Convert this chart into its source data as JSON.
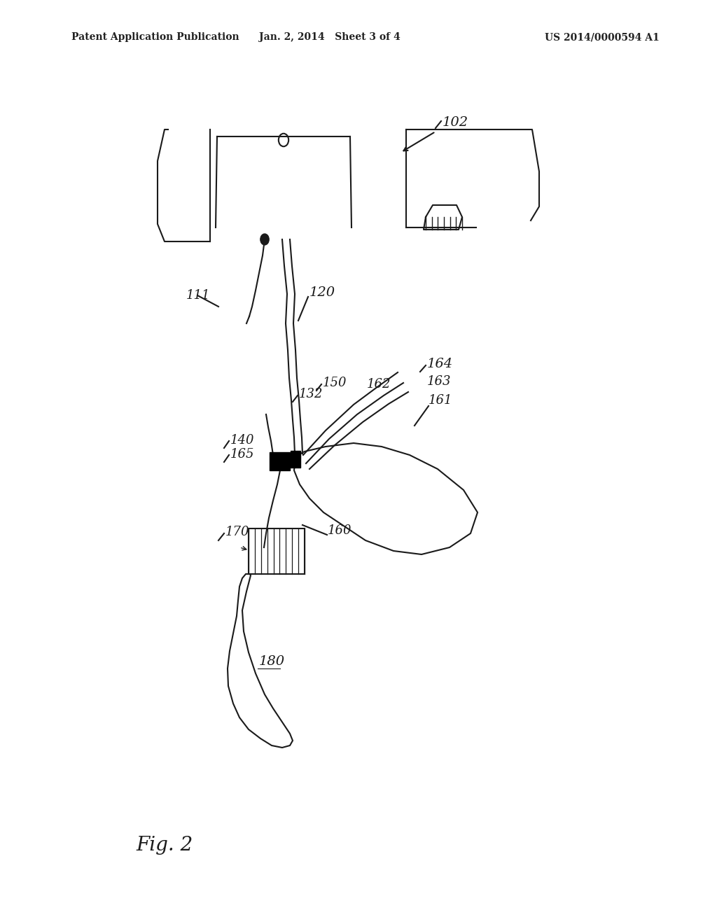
{
  "background_color": "#ffffff",
  "header_left": "Patent Application Publication",
  "header_center": "Jan. 2, 2014   Sheet 3 of 4",
  "header_right": "US 2014/0000594 A1",
  "fig_label": "Fig. 2",
  "line_color": "#1a1a1a",
  "label_fontsize": 13,
  "header_fontsize": 10
}
